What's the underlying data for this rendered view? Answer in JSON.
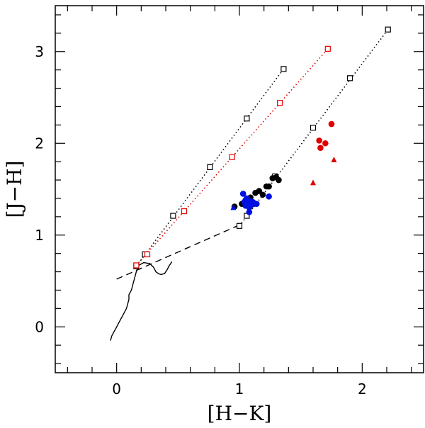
{
  "chart_data": {
    "type": "scatter",
    "title": "",
    "xlabel": "[H−K]",
    "ylabel": "[J−H]",
    "xlim": [
      -0.5,
      2.5
    ],
    "ylim": [
      -0.5,
      3.5
    ],
    "x_ticks": [
      0,
      1,
      2
    ],
    "y_ticks": [
      0,
      1,
      2,
      3
    ],
    "grid": false,
    "legend": "none",
    "colors": {
      "black": "#000000",
      "red": "#e00000",
      "blue": "#0010e0"
    },
    "main_sequence_curve": [
      [
        -0.05,
        -0.15
      ],
      [
        -0.04,
        -0.1
      ],
      [
        -0.02,
        -0.05
      ],
      [
        0.0,
        0.0
      ],
      [
        0.02,
        0.05
      ],
      [
        0.04,
        0.1
      ],
      [
        0.06,
        0.15
      ],
      [
        0.08,
        0.2
      ],
      [
        0.09,
        0.25
      ],
      [
        0.1,
        0.3
      ],
      [
        0.1,
        0.35
      ],
      [
        0.12,
        0.4
      ],
      [
        0.13,
        0.45
      ],
      [
        0.14,
        0.5
      ],
      [
        0.15,
        0.55
      ],
      [
        0.16,
        0.6
      ],
      [
        0.17,
        0.64
      ],
      [
        0.18,
        0.67
      ],
      [
        0.22,
        0.7
      ],
      [
        0.27,
        0.69
      ],
      [
        0.3,
        0.65
      ],
      [
        0.32,
        0.6
      ],
      [
        0.34,
        0.58
      ],
      [
        0.36,
        0.57
      ],
      [
        0.39,
        0.58
      ],
      [
        0.41,
        0.62
      ],
      [
        0.43,
        0.67
      ],
      [
        0.45,
        0.71
      ]
    ],
    "ctts_locus": {
      "x": [
        0.0,
        1.0
      ],
      "y": [
        0.52,
        1.11
      ]
    },
    "reddening_vectors": [
      {
        "color": "black",
        "x": [
          0.16,
          0.23,
          0.46,
          0.76,
          1.06,
          1.36
        ],
        "y": [
          0.66,
          0.79,
          1.21,
          1.74,
          2.27,
          2.81
        ]
      },
      {
        "color": "red",
        "x": [
          0.16,
          0.25,
          0.55,
          0.94,
          1.33,
          1.72
        ],
        "y": [
          0.67,
          0.79,
          1.26,
          1.85,
          2.44,
          3.03
        ]
      },
      {
        "color": "black",
        "x": [
          1.0,
          1.06,
          1.29,
          1.6,
          1.9,
          2.21
        ],
        "y": [
          1.1,
          1.21,
          1.64,
          2.17,
          2.71,
          3.24
        ]
      }
    ],
    "scatter_points": [
      {
        "color": "black",
        "marker": "circle",
        "x": [
          0.96,
          1.02,
          1.05,
          1.09,
          1.13,
          1.16,
          1.19,
          1.22,
          1.24,
          1.27,
          1.3,
          1.32
        ],
        "y": [
          1.31,
          1.34,
          1.38,
          1.41,
          1.46,
          1.48,
          1.44,
          1.53,
          1.53,
          1.62,
          1.63,
          1.6
        ]
      },
      {
        "color": "blue",
        "marker": "circle",
        "x": [
          1.03,
          1.04,
          1.05,
          1.06,
          1.07,
          1.08,
          1.09,
          1.1,
          1.11,
          1.12,
          1.14,
          1.08,
          1.05,
          1.24
        ],
        "y": [
          1.45,
          1.36,
          1.32,
          1.4,
          1.35,
          1.3,
          1.37,
          1.33,
          1.36,
          1.34,
          1.34,
          1.25,
          1.38,
          1.42
        ]
      },
      {
        "color": "blue",
        "marker": "triangle",
        "x": [
          0.95
        ],
        "y": [
          1.3
        ]
      },
      {
        "color": "red",
        "marker": "circle",
        "x": [
          1.65,
          1.66,
          1.7,
          1.75
        ],
        "y": [
          2.03,
          1.95,
          2.0,
          2.21
        ]
      },
      {
        "color": "red",
        "marker": "triangle",
        "x": [
          1.6,
          1.77
        ],
        "y": [
          1.57,
          1.82
        ]
      }
    ]
  }
}
